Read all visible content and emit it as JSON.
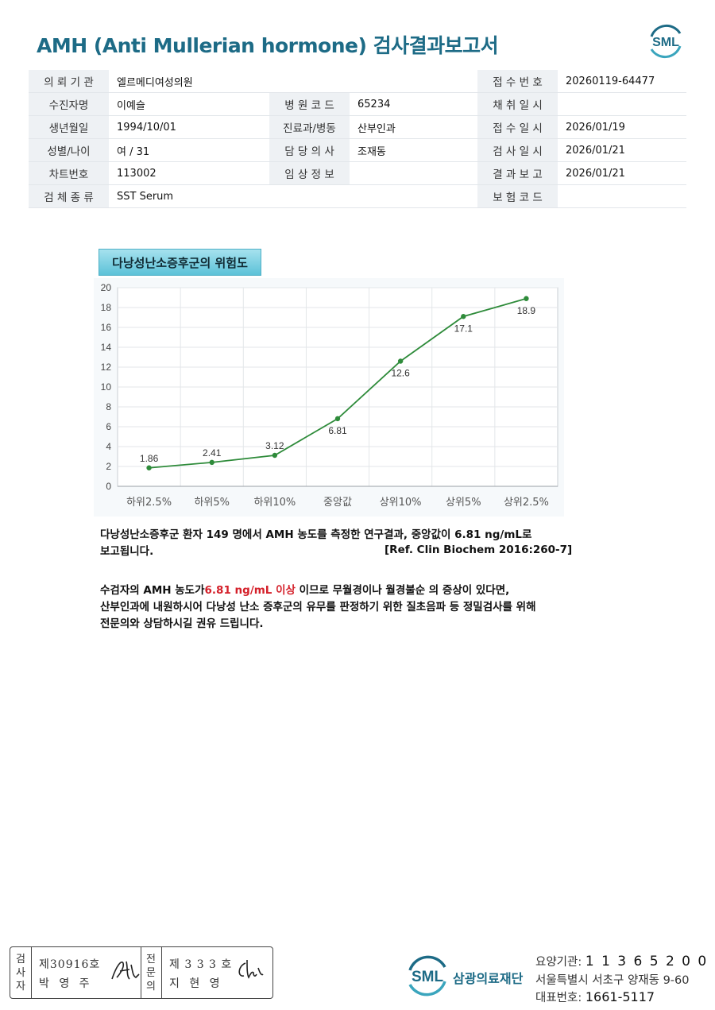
{
  "header": {
    "title": "AMH (Anti Mullerian hormone) 검사결과보고서",
    "logo_text": "SML"
  },
  "info_rows": [
    [
      "의 뢰 기 관",
      "엘르메디여성의원",
      "",
      "",
      "접 수 번 호",
      "20260119-64477"
    ],
    [
      "수진자명",
      "이예슬",
      "병 원 코 드",
      "65234",
      "채 취 일 시",
      ""
    ],
    [
      "생년월일",
      "1994/10/01",
      "진료과/병동",
      "산부인과",
      "접 수 일 시",
      "2026/01/19"
    ],
    [
      "성별/나이",
      "여 / 31",
      "담 당 의 사",
      "조재동",
      "검 사 일 시",
      "2026/01/21"
    ],
    [
      "차트번호",
      "113002",
      "임 상 정 보",
      "",
      "결 과 보 고",
      "2026/01/21"
    ],
    [
      "검 체 종 류",
      "SST Serum",
      "",
      "",
      "보 험 코 드",
      ""
    ]
  ],
  "chart_title": "다낭성난소증후군의 위험도",
  "chart_data": {
    "type": "line",
    "categories": [
      "하위2.5%",
      "하위5%",
      "하위10%",
      "중앙값",
      "상위10%",
      "상위5%",
      "상위2.5%"
    ],
    "values": [
      1.86,
      2.41,
      3.12,
      6.81,
      12.6,
      17.1,
      18.9
    ],
    "data_labels": [
      "1.86",
      "2.41",
      "3.12",
      "6.81",
      "12.6",
      "17.1",
      "18.9"
    ],
    "y_ticks": [
      "0",
      "2",
      "4",
      "6",
      "8",
      "10",
      "12",
      "14",
      "16",
      "18",
      "20"
    ],
    "ylim": [
      0,
      20
    ],
    "grid": true,
    "line_color": "#2e8b3a"
  },
  "notes": {
    "line1": "다낭성난소증후군 환자 149 명에서 AMH 농도를 측정한 연구결과, 중앙값이 6.81 ng/mL로",
    "line2": "보고됩니다.",
    "ref": "[Ref. Clin Biochem 2016:260-7]",
    "line3_pre": "수검자의 AMH 농도가",
    "line3_highlight": "6.81 ng/mL 이상",
    "line3_post": " 이므로 무월경이나 월경불순 의 증상이 있다면,",
    "line4": "산부인과에 내원하시어 다낭성 난소 증후군의 유무를 판정하기 위한 질초음파 등 정밀검사를 위해",
    "line5": "전문의와 상담하시길 권유 드립니다.",
    "highlight_color": "#d4202a"
  },
  "signatures": {
    "examiner_label": [
      "검",
      "사",
      "자"
    ],
    "examiner_no": "제30916호",
    "examiner_name": "박 영 주",
    "specialist_label": [
      "전",
      "문",
      "의"
    ],
    "specialist_no": "제 3 3 3 호",
    "specialist_name": "지 현 영"
  },
  "footer": {
    "logo_text": "SML",
    "org_name": "삼광의료재단",
    "code_label": "요양기관: ",
    "code_value": "1 1 3 6 5 2 0 0",
    "address": "서울특별시 서초구 양재동 9-60",
    "phone_label": "대표번호: ",
    "phone_value": "1661-5117"
  }
}
